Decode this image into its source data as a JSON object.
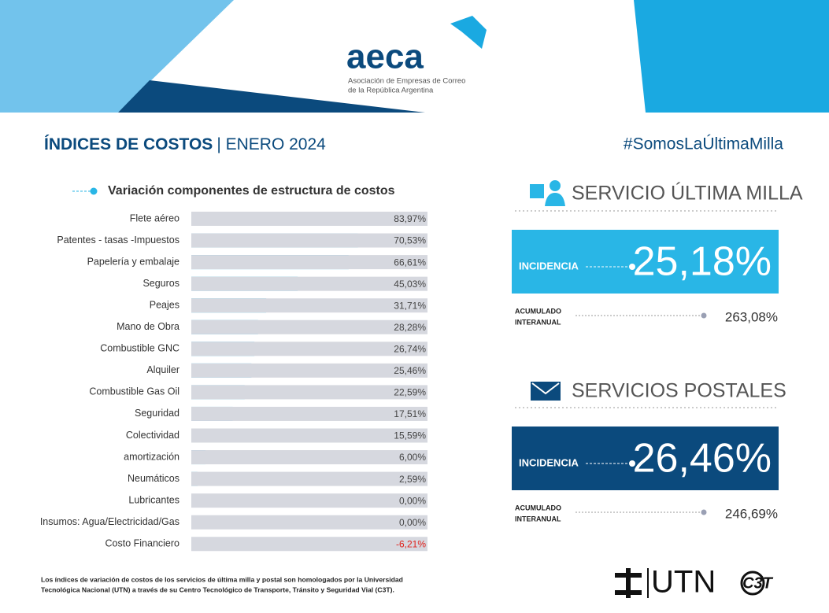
{
  "header": {
    "logo": "aeca",
    "org_line1": "Asociación de Empresas de Correo",
    "org_line2": "de la República Argentina",
    "title": "ÍNDICES DE COSTOS",
    "subtitle": "| ENERO 2024",
    "hashtag": "#SomosLaÚltimaMilla"
  },
  "chart_data": {
    "type": "hbar",
    "title": "Variación componentes de estructura de costos",
    "categories": [
      "Flete aéreo",
      "Patentes - tasas -Impuestos",
      "Papelería y embalaje",
      "Seguros",
      "Peajes",
      "Mano de Obra",
      "Combustible GNC",
      "Alquiler",
      "Combustible Gas Oil",
      "Seguridad",
      "Colectividad",
      "amortización",
      "Neumáticos",
      "Lubricantes",
      "Insumos: Agua/Electricidad/Gas",
      "Costo Financiero"
    ],
    "values": [
      83.97,
      70.53,
      66.61,
      45.03,
      31.71,
      28.28,
      26.74,
      25.46,
      22.59,
      17.51,
      15.59,
      6.0,
      2.59,
      0.0,
      0.0,
      -6.21
    ],
    "value_labels": [
      "83,97%",
      "70,53%",
      "66,61%",
      "45,03%",
      "31,71%",
      "28,28%",
      "26,74%",
      "25,46%",
      "22,59%",
      "17,51%",
      "15,59%",
      "6,00%",
      "2,59%",
      "0,00%",
      "0,00%",
      "-6,21%"
    ],
    "color": "#29b6e6",
    "xlim": [
      0,
      100
    ]
  },
  "panels": [
    {
      "title": "SERVICIO ÚLTIMA MILLA",
      "label": "INCIDENCIA",
      "value": "25,18%",
      "acc_line1": "ACUMULADO",
      "acc_line2": "INTERANUAL",
      "acc_value": "263,08%"
    },
    {
      "title": "SERVICIOS POSTALES",
      "label": "INCIDENCIA",
      "value": "26,46%",
      "acc_line1": "ACUMULADO",
      "acc_line2": "INTERANUAL",
      "acc_value": "246,69%"
    }
  ],
  "footer": {
    "note_line1": "Los índices de variación de costos de los servicios de última milla y postal son homologados por la Universidad",
    "note_line2": "Tecnológica Nacional (UTN) a través de su Centro Tecnológico de Transporte, Tránsito y Seguridad Vial (C3T).",
    "utn": "UTN",
    "c3t": "C3T"
  }
}
